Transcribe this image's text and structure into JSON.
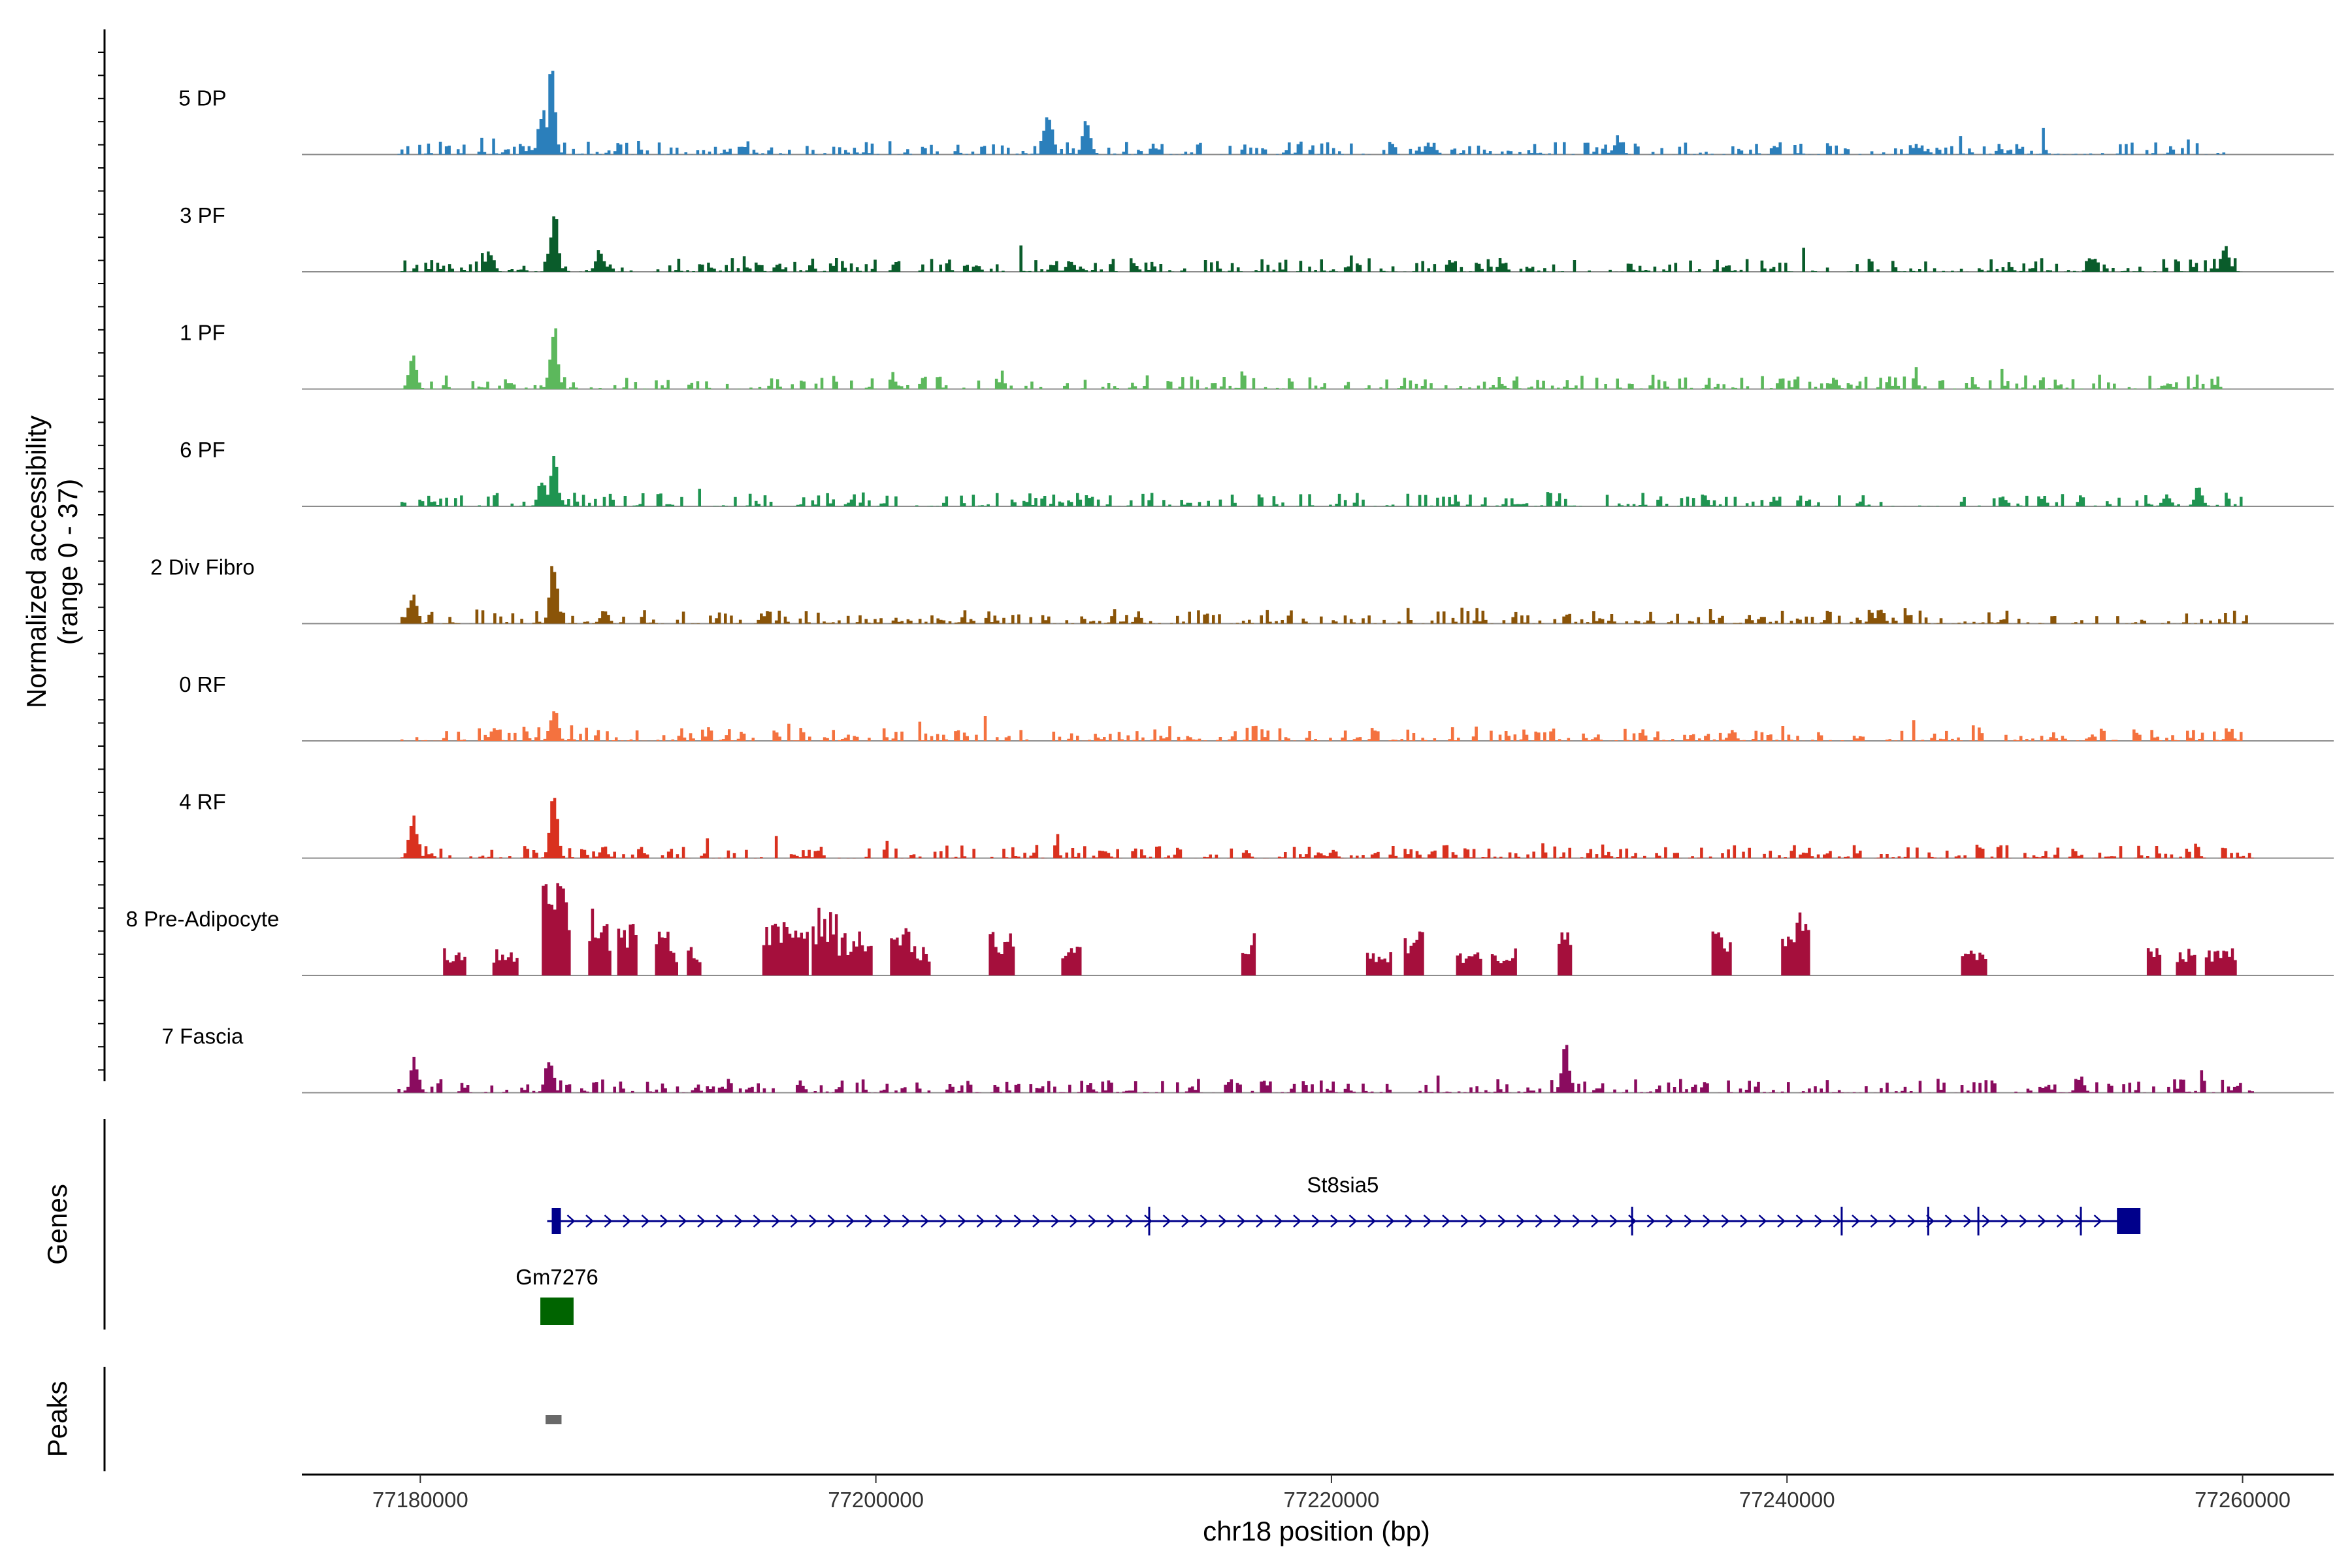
{
  "chart_data": {
    "type": "area",
    "region": "chr18",
    "x_start": 77174800,
    "x_end": 77264000,
    "xlabel": "chr18 position (bp)",
    "x_ticks": [
      77180000,
      77200000,
      77220000,
      77240000,
      77260000
    ],
    "x_tick_labels": [
      "77180000",
      "77200000",
      "77220000",
      "77240000",
      "77260000"
    ],
    "ylabel_line1": "Normalized accessibility",
    "ylabel_line2": "(range 0 - 37)",
    "y_range": [
      0,
      37
    ],
    "coverage_tracks": [
      {
        "name": "5 DP",
        "color": "#2b7fbb",
        "span": [
          77179000,
          77259500
        ],
        "peaks": [
          [
            77185700,
            0.95
          ],
          [
            77185300,
            0.55
          ],
          [
            77207500,
            0.55
          ],
          [
            77209200,
            0.45
          ],
          [
            77232500,
            0.2
          ],
          [
            77224200,
            0.14
          ],
          [
            77245600,
            0.13
          ]
        ]
      },
      {
        "name": "3 PF",
        "color": "#0a5c2b",
        "span": [
          77179000,
          77260000
        ],
        "peaks": [
          [
            77185800,
            0.75
          ],
          [
            77183000,
            0.25
          ],
          [
            77187800,
            0.25
          ],
          [
            77208500,
            0.15
          ],
          [
            77259200,
            0.28
          ]
        ]
      },
      {
        "name": "1 PF",
        "color": "#5cb85c",
        "span": [
          77179000,
          77259500
        ],
        "peaks": [
          [
            77185800,
            0.8
          ],
          [
            77179600,
            0.4
          ],
          [
            77242000,
            0.12
          ]
        ]
      },
      {
        "name": "6 PF",
        "color": "#1f9451",
        "span": [
          77179000,
          77260000
        ],
        "peaks": [
          [
            77185800,
            0.65
          ],
          [
            77185300,
            0.35
          ],
          [
            77258000,
            0.25
          ],
          [
            77256600,
            0.15
          ]
        ]
      },
      {
        "name": "2 Div Fibro",
        "color": "#8a5408",
        "span": [
          77179000,
          77260500
        ],
        "peaks": [
          [
            77185800,
            0.7
          ],
          [
            77179600,
            0.35
          ],
          [
            77188000,
            0.15
          ]
        ]
      },
      {
        "name": "0 RF",
        "color": "#f4723f",
        "span": [
          77179000,
          77260000
        ],
        "peaks": [
          [
            77185800,
            0.45
          ],
          [
            77183200,
            0.17
          ],
          [
            77237500,
            0.13
          ]
        ]
      },
      {
        "name": "4 RF",
        "color": "#d9311f",
        "span": [
          77179000,
          77260500
        ],
        "peaks": [
          [
            77179600,
            0.48
          ],
          [
            77185800,
            0.8
          ],
          [
            77188000,
            0.13
          ],
          [
            77210000,
            0.1
          ],
          [
            77220000,
            0.1
          ]
        ]
      },
      {
        "name": "8 Pre-Adipocyte",
        "color": "#a50f3c",
        "span": [
          77181000,
          77260000
        ],
        "style": "spikes",
        "peaks": [
          [
            77181200,
            0.28
          ],
          [
            77181700,
            0.28
          ],
          [
            77183700,
            0.28
          ],
          [
            77185800,
            1.0
          ],
          [
            77186100,
            0.75
          ],
          [
            77187700,
            0.7
          ],
          [
            77188000,
            0.5
          ],
          [
            77189000,
            0.55
          ],
          [
            77190500,
            0.45
          ],
          [
            77191000,
            0.3
          ],
          [
            77192000,
            0.3
          ],
          [
            77195500,
            0.55
          ],
          [
            77196500,
            0.6
          ],
          [
            77197500,
            0.7
          ],
          [
            77198000,
            0.65
          ],
          [
            77198600,
            0.45
          ],
          [
            77199400,
            0.45
          ],
          [
            77201000,
            0.5
          ],
          [
            77201800,
            0.3
          ],
          [
            77205500,
            0.45
          ],
          [
            77208500,
            0.3
          ],
          [
            77216300,
            0.45
          ],
          [
            77222000,
            0.28
          ],
          [
            77223500,
            0.45
          ],
          [
            77226000,
            0.28
          ],
          [
            77227500,
            0.28
          ],
          [
            77230200,
            0.45
          ],
          [
            77237100,
            0.45
          ],
          [
            77240200,
            0.65
          ],
          [
            77240600,
            0.55
          ],
          [
            77248200,
            0.28
          ],
          [
            77256000,
            0.28
          ],
          [
            77257500,
            0.28
          ],
          [
            77258800,
            0.28
          ],
          [
            77259400,
            0.28
          ]
        ]
      },
      {
        "name": "7 Fascia",
        "color": "#8a0c5f",
        "span": [
          77179000,
          77260500
        ],
        "peaks": [
          [
            77179700,
            0.4
          ],
          [
            77185600,
            0.42
          ],
          [
            77230200,
            0.55
          ],
          [
            77252800,
            0.2
          ]
        ]
      }
    ],
    "genes": [
      {
        "name": "St8sia5",
        "color": "#00008b",
        "start": 77185800,
        "end": 77255200,
        "strand": "+",
        "exons": [
          77186000,
          77212000,
          77233200,
          77242400,
          77246200,
          77248400,
          77252900,
          77255000
        ]
      },
      {
        "name": "Gm7276",
        "color": "#006400",
        "start": 77185500,
        "end": 77186500
      }
    ],
    "peaks_track": [
      {
        "start": 77185500,
        "end": 77186200,
        "color": "#696969"
      }
    ],
    "track_labels": {
      "genes": "Genes",
      "peaks": "Peaks"
    }
  }
}
